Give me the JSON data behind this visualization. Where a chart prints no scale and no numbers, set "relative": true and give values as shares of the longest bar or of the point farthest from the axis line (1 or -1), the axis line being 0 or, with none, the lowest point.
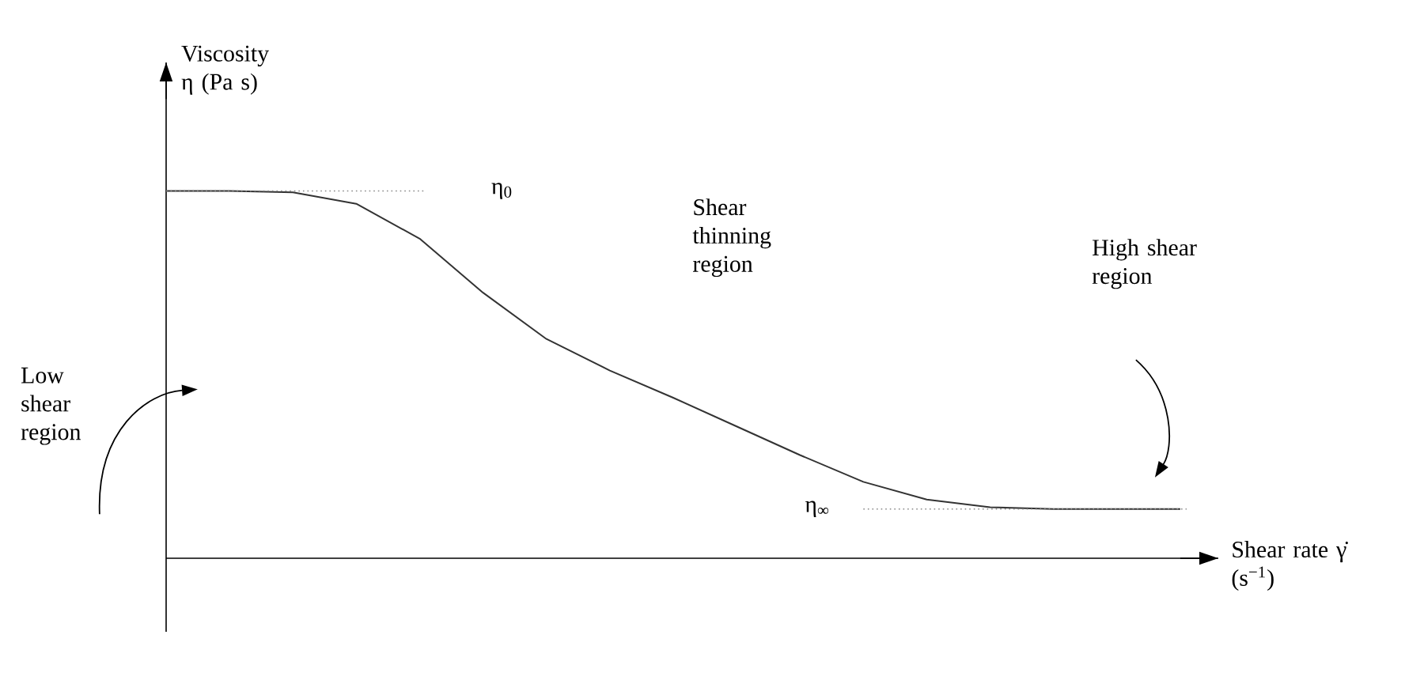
{
  "chart_data": {
    "type": "line",
    "relative": true,
    "xlabel": "Shear rate γ̇ (s$^{−1}$)",
    "ylabel": "Viscosity η (Pa s)",
    "categories": [
      null,
      null,
      null,
      null,
      null,
      null,
      null,
      null,
      null,
      null,
      null,
      null,
      null,
      null,
      null,
      null,
      null
    ],
    "series": [
      {
        "color": "#333333",
        "values": [
          1,
          1,
          0.996,
          0.965,
          0.87,
          0.723,
          0.597,
          0.511,
          0.437,
          0.359,
          0.281,
          0.208,
          0.16,
          0.139,
          0.134,
          0.134,
          0.134
        ]
      }
    ],
    "ref_lines": [
      {
        "axis": "y",
        "value": 1,
        "label": "η$_{0}$",
        "color": "#888888",
        "line_style": "dotted"
      },
      {
        "axis": "y",
        "value": 0.134,
        "label": "η$_{∞}$",
        "color": "#888888",
        "line_style": "dotted"
      }
    ],
    "annotations": [
      "Shear thinning region",
      "Low shear region",
      "High shear region"
    ]
  }
}
